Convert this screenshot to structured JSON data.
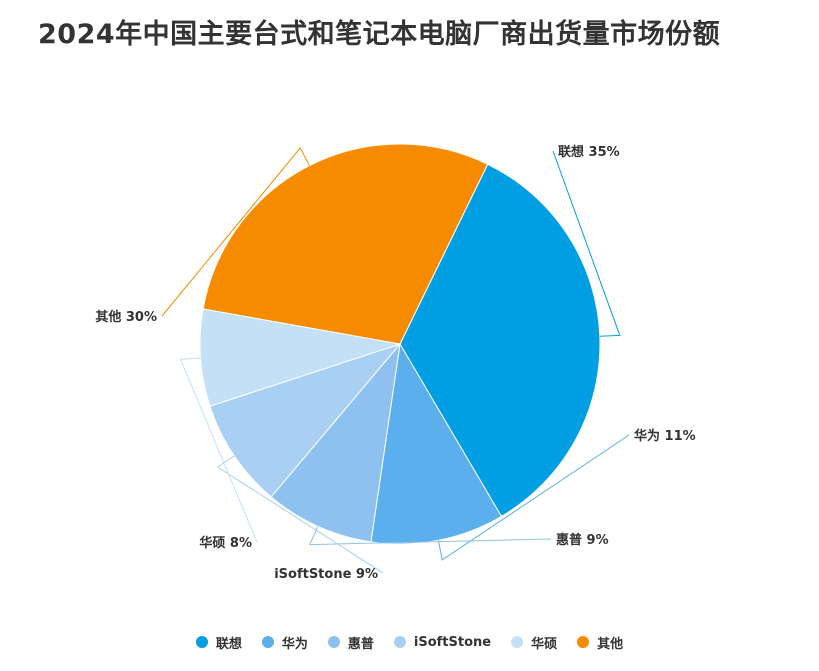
{
  "chart_data": {
    "type": "pie",
    "title": "2024年中国主要台式和笔记本电脑厂商出货量市场份额",
    "slices": [
      {
        "label": "联想",
        "value": 35,
        "display": "联想 35%",
        "color": "#009ee3"
      },
      {
        "label": "华为",
        "value": 11,
        "display": "华为 11%",
        "color": "#5aafec"
      },
      {
        "label": "惠普",
        "value": 9,
        "display": "惠普 9%",
        "color": "#8ec1ef"
      },
      {
        "label": "iSoftStone",
        "value": 9,
        "display": "iSoftStone 9%",
        "color": "#a9d0f3"
      },
      {
        "label": "华硕",
        "value": 8,
        "display": "华硕 8%",
        "color": "#c4e0f6"
      },
      {
        "label": "其他",
        "value": 30,
        "display": "其他 30%",
        "color": "#f68b00"
      }
    ],
    "legend_position": "bottom"
  }
}
